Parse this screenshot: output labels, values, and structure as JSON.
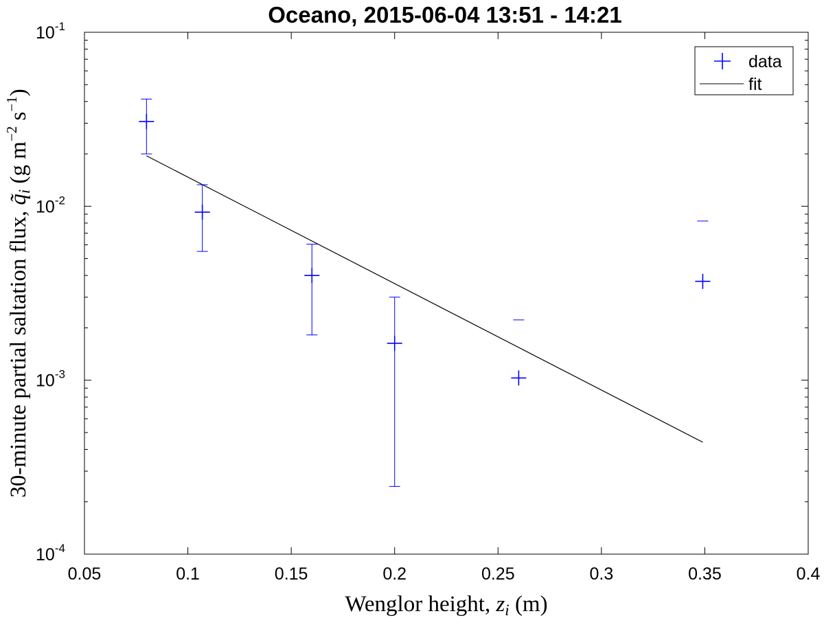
{
  "chart_data": {
    "type": "scatter",
    "title": "Oceano, 2015-06-04 13:51 - 14:21",
    "xlabel": "Wenglor height, z_i (m)",
    "xlabel_parts": {
      "text": "Wenglor height, ",
      "var": "z",
      "sub": "i",
      "unit": " (m)"
    },
    "ylabel": "30-minute partial saltation flux, q̃_i (g m^-2 s^-1)",
    "ylabel_parts": {
      "text": "30-minute partial saltation flux, ",
      "var": "q̃",
      "sub": "i",
      "unit_open": " (g m",
      "exp1": "−2",
      "mid": " s",
      "exp2": "−1",
      "unit_close": ")"
    },
    "xlim": [
      0.05,
      0.4
    ],
    "ylim": [
      0.0001,
      0.1
    ],
    "yscale": "log",
    "grid": false,
    "legend_position": "top-right",
    "x_ticks": [
      {
        "value": 0.05,
        "label": "0.05"
      },
      {
        "value": 0.1,
        "label": "0.1"
      },
      {
        "value": 0.15,
        "label": "0.15"
      },
      {
        "value": 0.2,
        "label": "0.2"
      },
      {
        "value": 0.25,
        "label": "0.25"
      },
      {
        "value": 0.3,
        "label": "0.3"
      },
      {
        "value": 0.35,
        "label": "0.35"
      },
      {
        "value": 0.4,
        "label": "0.4"
      }
    ],
    "y_ticks": [
      {
        "value": 0.0001,
        "base": "10",
        "exp": "-4"
      },
      {
        "value": 0.001,
        "base": "10",
        "exp": "-3"
      },
      {
        "value": 0.01,
        "base": "10",
        "exp": "-2"
      },
      {
        "value": 0.1,
        "base": "10",
        "exp": "-1"
      }
    ],
    "series": [
      {
        "name": "data",
        "marker": "+",
        "color": "#0000ff",
        "points": [
          {
            "x": 0.08,
            "y": 0.0307,
            "lo": 0.02,
            "hi": 0.0413
          },
          {
            "x": 0.107,
            "y": 0.00925,
            "lo": 0.0055,
            "hi": 0.0133
          },
          {
            "x": 0.16,
            "y": 0.004,
            "lo": 0.00182,
            "hi": 0.00605
          },
          {
            "x": 0.2,
            "y": 0.00163,
            "lo": 0.000245,
            "hi": 0.003
          },
          {
            "x": 0.26,
            "y": 0.00103,
            "lo": null,
            "hi": 0.00222
          },
          {
            "x": 0.349,
            "y": 0.0037,
            "lo": null,
            "hi": 0.00822
          }
        ]
      },
      {
        "name": "fit",
        "style": "line",
        "color": "#000000",
        "points": [
          {
            "x": 0.08,
            "y": 0.0195
          },
          {
            "x": 0.349,
            "y": 0.00044
          }
        ]
      }
    ]
  }
}
